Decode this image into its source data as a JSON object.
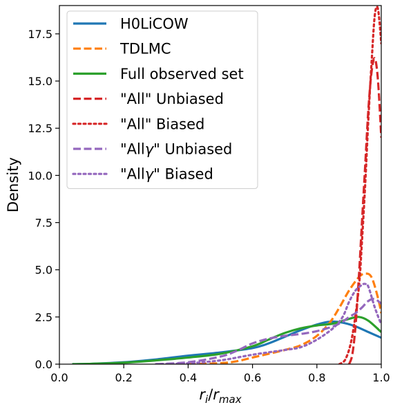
{
  "chart_data": {
    "type": "line",
    "xlabel": "r_i/r_max",
    "ylabel": "Density",
    "xlim": [
      0.0,
      1.0
    ],
    "ylim": [
      0.0,
      19.0
    ],
    "xticks": [
      0.0,
      0.2,
      0.4,
      0.6,
      0.8,
      1.0
    ],
    "yticks": [
      0.0,
      2.5,
      5.0,
      7.5,
      10.0,
      12.5,
      15.0,
      17.5
    ],
    "xtick_labels": [
      "0.0",
      "0.2",
      "0.4",
      "0.6",
      "0.8",
      "1.0"
    ],
    "ytick_labels": [
      "0.0",
      "2.5",
      "5.0",
      "7.5",
      "10.0",
      "12.5",
      "15.0",
      "17.5"
    ],
    "grid": false,
    "legend_position": "top-left",
    "series": [
      {
        "name": "H0LiCOW",
        "color": "#1f77b4",
        "dash": "solid",
        "x": [
          0.04,
          0.1,
          0.2,
          0.3,
          0.4,
          0.5,
          0.6,
          0.65,
          0.7,
          0.75,
          0.8,
          0.84,
          0.88,
          0.92,
          0.96,
          1.0
        ],
        "y": [
          0.0,
          0.02,
          0.1,
          0.25,
          0.45,
          0.62,
          0.85,
          1.1,
          1.45,
          1.8,
          2.1,
          2.25,
          2.2,
          2.0,
          1.7,
          1.4
        ]
      },
      {
        "name": "TDLMC",
        "color": "#ff7f0e",
        "dash": "dashed",
        "x": [
          0.4,
          0.5,
          0.55,
          0.6,
          0.65,
          0.7,
          0.75,
          0.8,
          0.84,
          0.87,
          0.9,
          0.93,
          0.95,
          0.97,
          0.99,
          1.0
        ],
        "y": [
          0.0,
          0.05,
          0.15,
          0.35,
          0.55,
          0.75,
          1.0,
          1.5,
          2.2,
          3.0,
          3.9,
          4.6,
          4.8,
          4.6,
          3.5,
          2.7
        ]
      },
      {
        "name": "Full observed set",
        "color": "#2ca02c",
        "dash": "solid",
        "x": [
          0.04,
          0.1,
          0.2,
          0.3,
          0.4,
          0.5,
          0.6,
          0.65,
          0.7,
          0.75,
          0.8,
          0.85,
          0.9,
          0.93,
          0.96,
          1.0
        ],
        "y": [
          0.0,
          0.02,
          0.08,
          0.2,
          0.35,
          0.55,
          0.95,
          1.3,
          1.65,
          1.9,
          2.05,
          2.15,
          2.4,
          2.5,
          2.3,
          1.7
        ]
      },
      {
        "name": "\"All\" Unbiased",
        "color": "#d62728",
        "dash": "dashed",
        "x": [
          0.9,
          0.91,
          0.92,
          0.93,
          0.94,
          0.95,
          0.96,
          0.97,
          0.98,
          0.99,
          1.0
        ],
        "y": [
          0.0,
          0.5,
          2.0,
          4.5,
          7.5,
          10.5,
          13.5,
          15.5,
          16.2,
          15.0,
          12.0
        ]
      },
      {
        "name": "\"All\" Biased",
        "color": "#d62728",
        "dash": "dotted",
        "x": [
          0.87,
          0.89,
          0.91,
          0.93,
          0.94,
          0.95,
          0.96,
          0.97,
          0.98,
          0.99,
          1.0
        ],
        "y": [
          0.0,
          0.3,
          1.5,
          4.0,
          6.5,
          9.5,
          13.0,
          16.0,
          18.5,
          18.8,
          17.0
        ]
      },
      {
        "name": "\"Allγ\" Unbiased",
        "color": "#9467bd",
        "dash": "dashed",
        "x": [
          0.3,
          0.4,
          0.5,
          0.55,
          0.6,
          0.65,
          0.7,
          0.75,
          0.8,
          0.85,
          0.88,
          0.9,
          0.92,
          0.94,
          0.96,
          0.98,
          1.0
        ],
        "y": [
          0.0,
          0.1,
          0.4,
          0.7,
          1.1,
          1.35,
          1.5,
          1.6,
          1.75,
          2.0,
          2.25,
          2.5,
          2.7,
          3.0,
          3.35,
          3.45,
          3.2
        ]
      },
      {
        "name": "\"Allγ\" Biased",
        "color": "#9467bd",
        "dash": "dotted",
        "x": [
          0.3,
          0.4,
          0.5,
          0.6,
          0.7,
          0.75,
          0.8,
          0.85,
          0.88,
          0.9,
          0.92,
          0.94,
          0.95,
          0.96,
          0.98,
          1.0
        ],
        "y": [
          0.0,
          0.05,
          0.2,
          0.5,
          0.75,
          0.9,
          1.3,
          1.9,
          2.5,
          3.3,
          3.9,
          4.2,
          4.25,
          4.1,
          3.0,
          2.1
        ]
      }
    ]
  }
}
